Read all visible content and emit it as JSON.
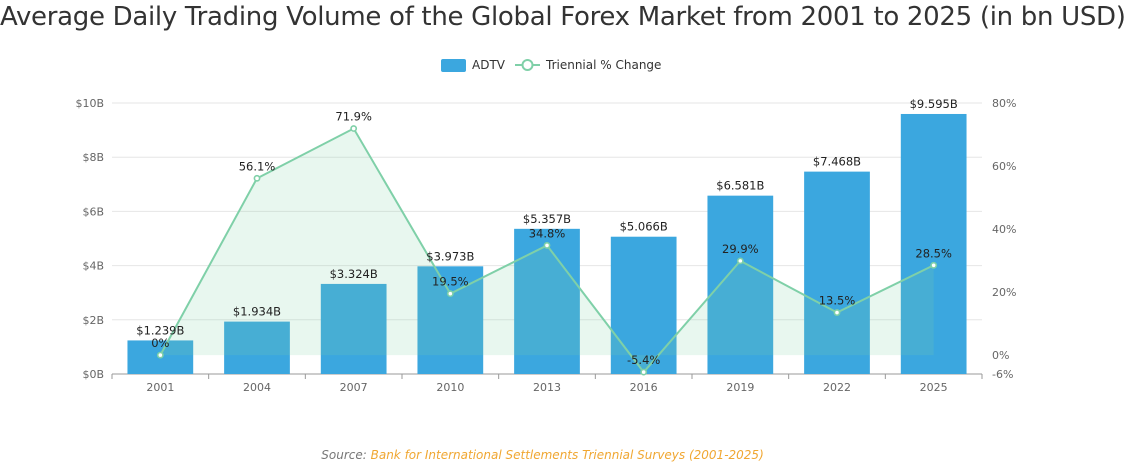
{
  "title": "Average Daily Trading Volume of the Global Forex Market from 2001 to 2025 (in bn USD)",
  "source": {
    "prefix": "Source:",
    "text": "Bank for International Settlements Triennial Surveys (2001-2025)"
  },
  "colors": {
    "bar": "#3ba7df",
    "line": "#7fd0a8",
    "area": "rgba(127,208,168,0.18)",
    "source_link": "#f0a732",
    "text": "#666666",
    "grid": "#e6e6e6"
  },
  "chart_data": {
    "type": "bar",
    "categories": [
      "2001",
      "2004",
      "2007",
      "2010",
      "2013",
      "2016",
      "2019",
      "2022",
      "2025"
    ],
    "series": [
      {
        "name": "ADTV",
        "type": "bar",
        "axis": "left",
        "values": [
          1.239,
          1.934,
          3.324,
          3.973,
          5.357,
          5.066,
          6.581,
          7.468,
          9.595
        ],
        "labels": [
          "$1.239B",
          "$1.934B",
          "$3.324B",
          "$3.973B",
          "$5.357B",
          "$5.066B",
          "$6.581B",
          "$7.468B",
          "$9.595B"
        ]
      },
      {
        "name": "Triennial % Change",
        "type": "area-line",
        "axis": "right",
        "values": [
          0,
          56.1,
          71.9,
          19.5,
          34.8,
          -5.4,
          29.9,
          13.5,
          28.5
        ],
        "labels": [
          "0%",
          "56.1%",
          "71.9%",
          "19.5%",
          "34.8%",
          "-5.4%",
          "29.9%",
          "13.5%",
          "28.5%"
        ]
      }
    ],
    "y_left": {
      "ylim": [
        0,
        10
      ],
      "ticks": [
        0,
        2,
        4,
        6,
        8,
        10
      ],
      "tick_labels": [
        "$0B",
        "$2B",
        "$4B",
        "$6B",
        "$8B",
        "$10B"
      ]
    },
    "y_right": {
      "ylim": [
        -6,
        80
      ],
      "ticks": [
        -6,
        0,
        20,
        40,
        60,
        80
      ],
      "tick_labels": [
        "-6%",
        "0%",
        "20%",
        "40%",
        "60%",
        "80%"
      ]
    },
    "grid": true,
    "legend": "top-center"
  }
}
